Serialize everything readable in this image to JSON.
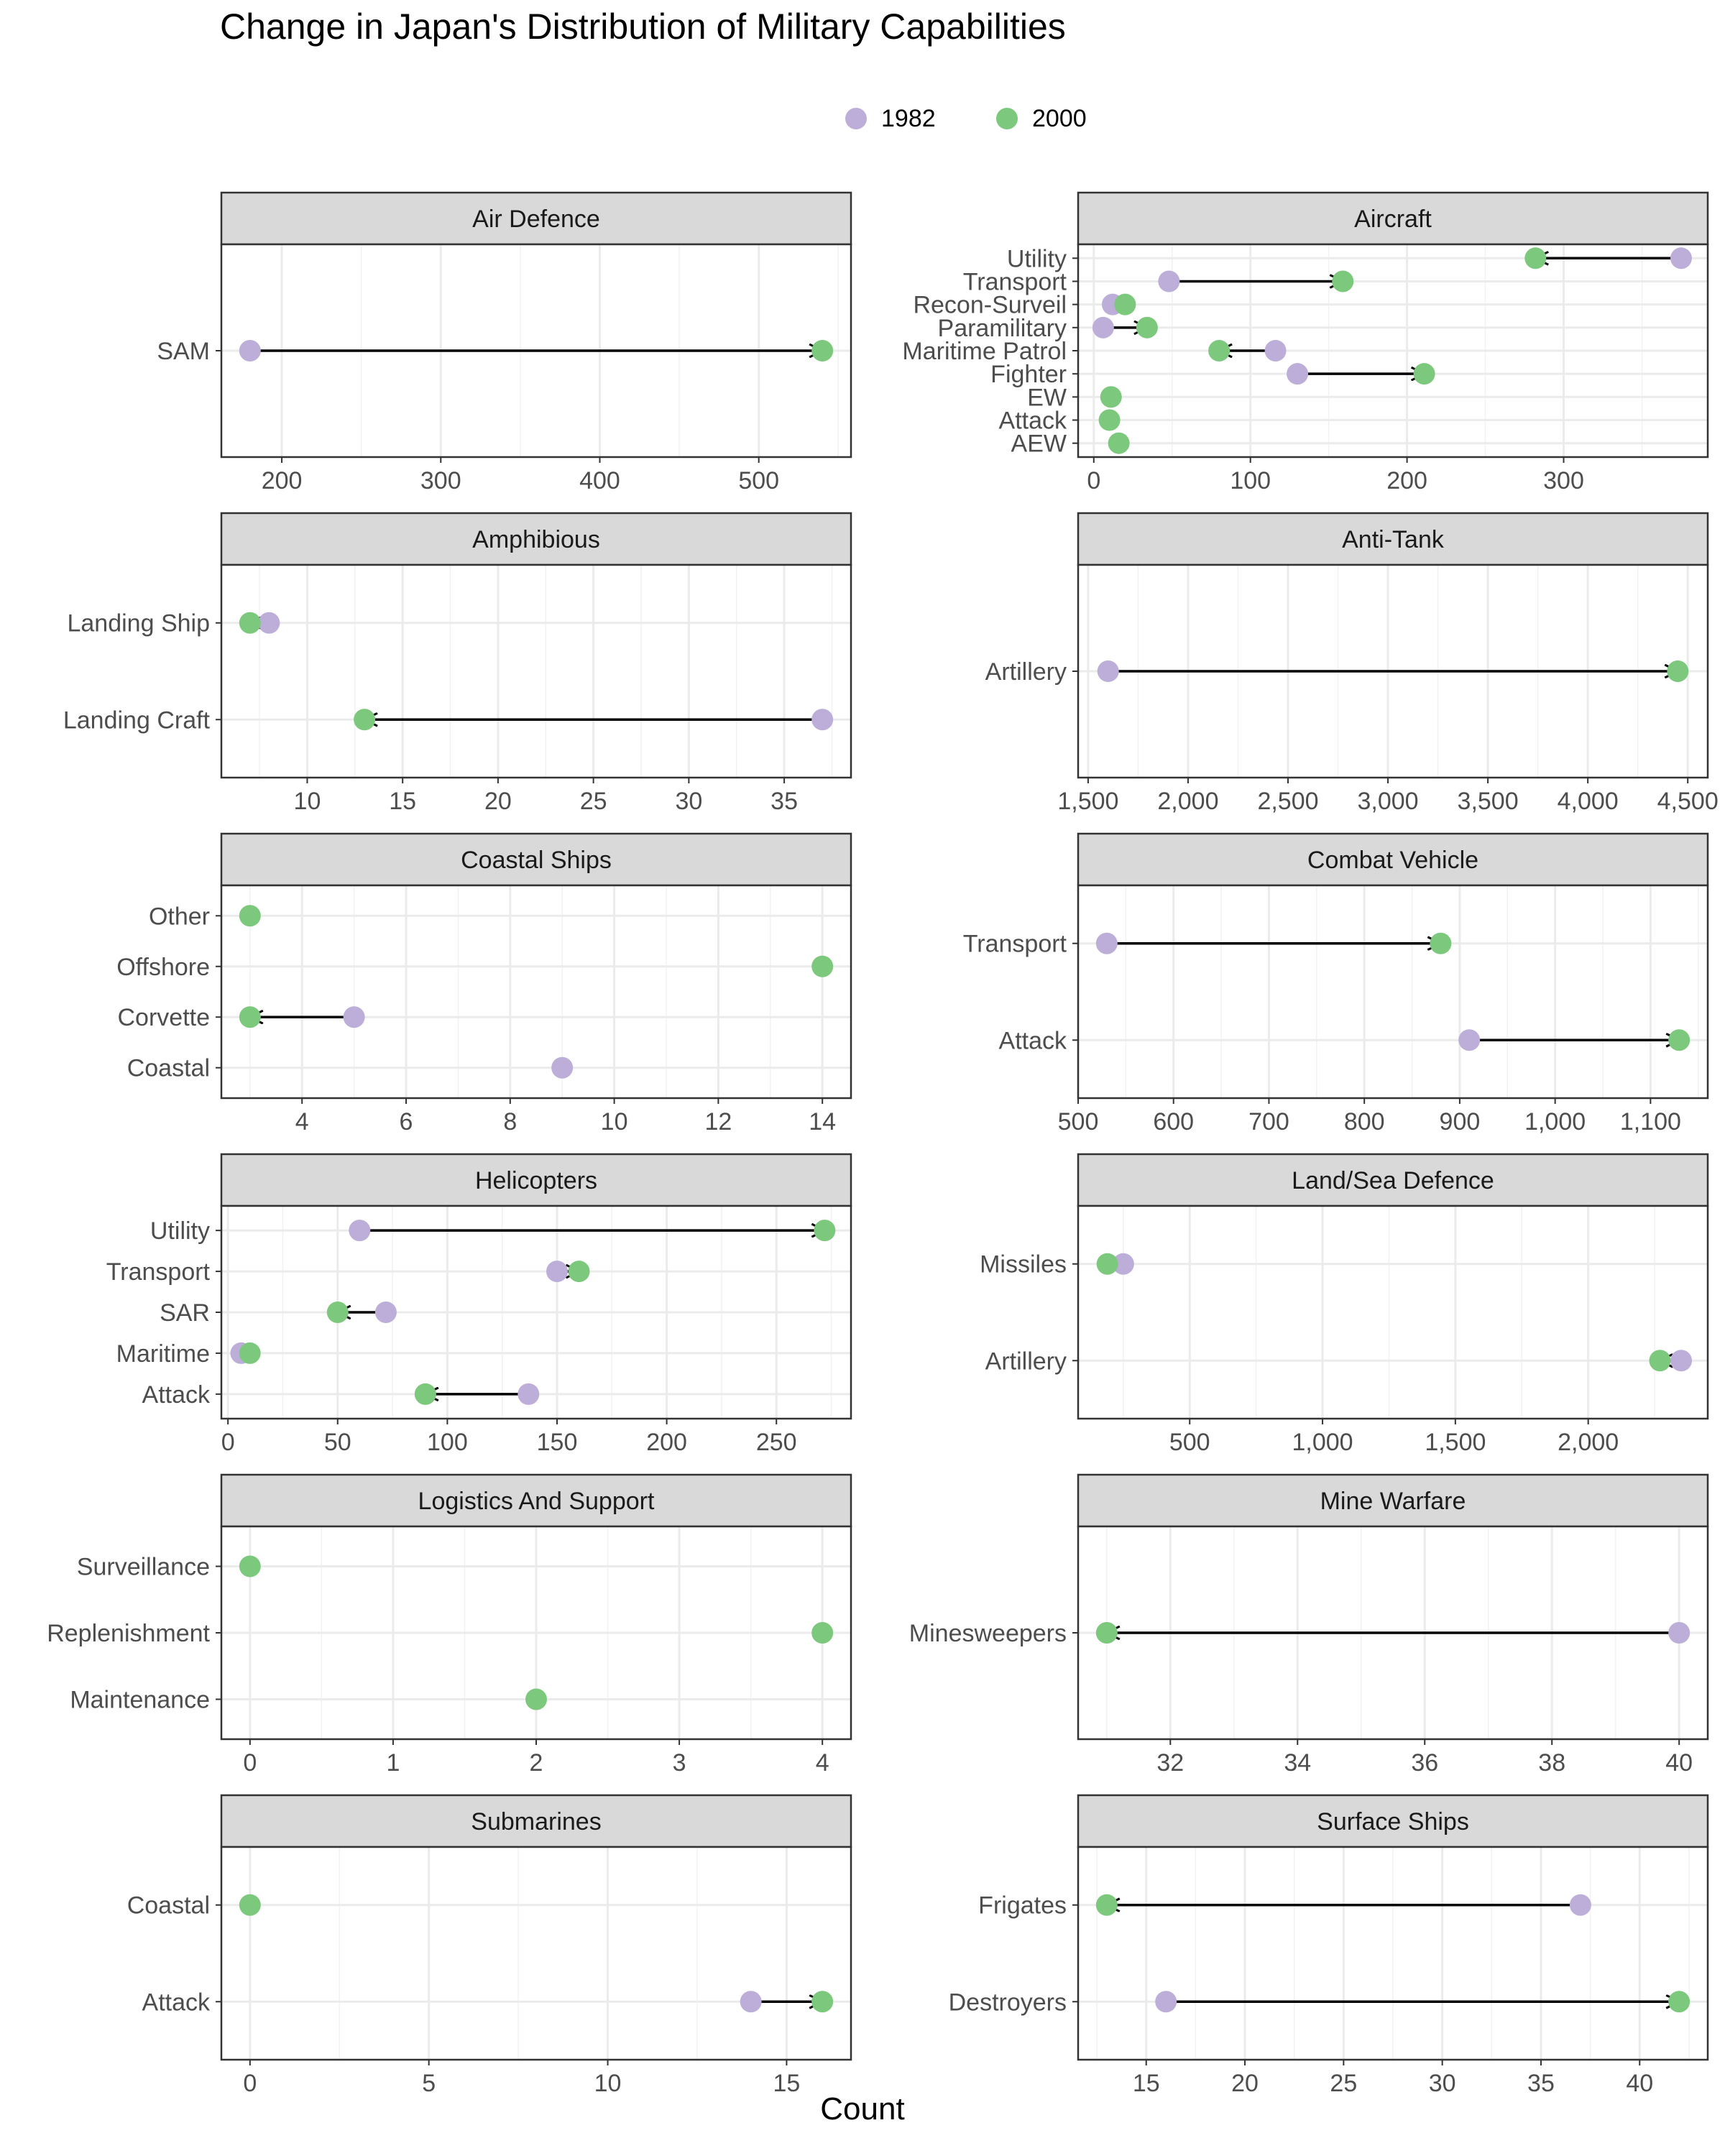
{
  "title": "Change in Japan's Distribution of Military Capabilities",
  "x_axis_label": "Count",
  "colors": {
    "y1982": "#bcaed8",
    "y2000": "#7cc87c",
    "arrow": "#000000",
    "strip": "#d9d9d9",
    "grid": "#ebebeb"
  },
  "legend": {
    "label_1982": "1982",
    "label_2000": "2000"
  },
  "chart_data": [
    {
      "type": "dumbbell",
      "title": "Air Defence",
      "xlim": [
        162,
        558
      ],
      "xticks": [
        200,
        300,
        400,
        500
      ],
      "xtick_labels": [
        "200",
        "300",
        "400",
        "500"
      ],
      "categories": [
        "SAM"
      ],
      "v1982": [
        180
      ],
      "v2000": [
        540
      ]
    },
    {
      "type": "dumbbell",
      "title": "Aircraft",
      "xlim": [
        -10,
        392
      ],
      "xticks": [
        0,
        100,
        200,
        300
      ],
      "xtick_labels": [
        "0",
        "100",
        "200",
        "300"
      ],
      "categories": [
        "Utility",
        "Transport",
        "Recon-Surveil",
        "Paramilitary",
        "Maritime Patrol",
        "Fighter",
        "EW",
        "Attack",
        "AEW"
      ],
      "v1982": [
        375,
        48,
        12,
        6,
        116,
        130,
        null,
        null,
        null
      ],
      "v2000": [
        282,
        159,
        20,
        34,
        80,
        211,
        11,
        10,
        16
      ]
    },
    {
      "type": "dumbbell",
      "title": "Amphibious",
      "xlim": [
        5.5,
        38.5
      ],
      "xticks": [
        10,
        15,
        20,
        25,
        30,
        35
      ],
      "xtick_labels": [
        "10",
        "15",
        "20",
        "25",
        "30",
        "35"
      ],
      "categories": [
        "Landing Ship",
        "Landing Craft"
      ],
      "v1982": [
        8,
        37
      ],
      "v2000": [
        7,
        13
      ]
    },
    {
      "type": "dumbbell",
      "title": "Anti-Tank",
      "xlim": [
        1450,
        4600
      ],
      "xticks": [
        1500,
        2000,
        2500,
        3000,
        3500,
        4000,
        4500
      ],
      "xtick_labels": [
        "1,500",
        "2,000",
        "2,500",
        "3,000",
        "3,500",
        "4,000",
        "4,500"
      ],
      "categories": [
        "Artillery"
      ],
      "v1982": [
        1600
      ],
      "v2000": [
        4450
      ]
    },
    {
      "type": "dumbbell",
      "title": "Coastal Ships",
      "xlim": [
        2.45,
        14.55
      ],
      "xticks": [
        4,
        6,
        8,
        10,
        12,
        14
      ],
      "xtick_labels": [
        "4",
        "6",
        "8",
        "10",
        "12",
        "14"
      ],
      "categories": [
        "Other",
        "Offshore",
        "Corvette",
        "Coastal"
      ],
      "v1982": [
        null,
        null,
        5,
        9
      ],
      "v2000": [
        3,
        14,
        3,
        null
      ]
    },
    {
      "type": "dumbbell",
      "title": "Combat Vehicle",
      "xlim": [
        500,
        1160
      ],
      "xticks": [
        500,
        600,
        700,
        800,
        900,
        1000,
        1100
      ],
      "xtick_labels": [
        "500",
        "600",
        "700",
        "800",
        "900",
        "1,000",
        "1,100"
      ],
      "categories": [
        "Transport",
        "Attack"
      ],
      "v1982": [
        530,
        910
      ],
      "v2000": [
        880,
        1130
      ]
    },
    {
      "type": "dumbbell",
      "title": "Helicopters",
      "xlim": [
        -3,
        284
      ],
      "xticks": [
        0,
        50,
        100,
        150,
        200,
        250
      ],
      "xtick_labels": [
        "0",
        "50",
        "100",
        "150",
        "200",
        "250"
      ],
      "categories": [
        "Utility",
        "Transport",
        "SAR",
        "Maritime",
        "Attack"
      ],
      "v1982": [
        60,
        150,
        72,
        6,
        137
      ],
      "v2000": [
        272,
        160,
        50,
        10,
        90
      ]
    },
    {
      "type": "dumbbell",
      "title": "Land/Sea Defence",
      "xlim": [
        80,
        2450
      ],
      "xticks": [
        500,
        1000,
        1500,
        2000
      ],
      "xtick_labels": [
        "500",
        "1,000",
        "1,500",
        "2,000"
      ],
      "categories": [
        "Missiles",
        "Artillery"
      ],
      "v1982": [
        250,
        2350
      ],
      "v2000": [
        190,
        2270
      ]
    },
    {
      "type": "dumbbell",
      "title": "Logistics And Support",
      "xlim": [
        -0.2,
        4.2
      ],
      "xticks": [
        0,
        1,
        2,
        3,
        4
      ],
      "xtick_labels": [
        "0",
        "1",
        "2",
        "3",
        "4"
      ],
      "categories": [
        "Surveillance",
        "Replenishment",
        "Maintenance"
      ],
      "v1982": [
        null,
        null,
        null
      ],
      "v2000": [
        0,
        4,
        2
      ]
    },
    {
      "type": "dumbbell",
      "title": "Mine Warfare",
      "xlim": [
        30.55,
        40.45
      ],
      "xticks": [
        32,
        34,
        36,
        38,
        40
      ],
      "xtick_labels": [
        "32",
        "34",
        "36",
        "38",
        "40"
      ],
      "categories": [
        "Minesweepers"
      ],
      "v1982": [
        40
      ],
      "v2000": [
        31
      ]
    },
    {
      "type": "dumbbell",
      "title": "Submarines",
      "xlim": [
        -0.8,
        16.8
      ],
      "xticks": [
        0,
        5,
        10,
        15
      ],
      "xtick_labels": [
        "0",
        "5",
        "10",
        "15"
      ],
      "categories": [
        "Coastal",
        "Attack"
      ],
      "v1982": [
        null,
        14
      ],
      "v2000": [
        0,
        16
      ]
    },
    {
      "type": "dumbbell",
      "title": "Surface Ships",
      "xlim": [
        11.55,
        43.45
      ],
      "xticks": [
        15,
        20,
        25,
        30,
        35,
        40
      ],
      "xtick_labels": [
        "15",
        "20",
        "25",
        "30",
        "35",
        "40"
      ],
      "categories": [
        "Frigates",
        "Destroyers"
      ],
      "v1982": [
        37,
        16
      ],
      "v2000": [
        13,
        42
      ]
    }
  ]
}
